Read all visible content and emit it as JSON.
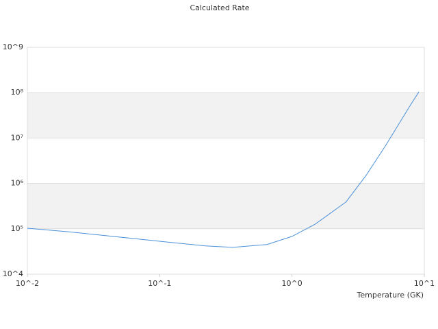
{
  "chart_data": {
    "type": "line",
    "title": "Calculated Rate",
    "x_label": "Temperature (GK)",
    "log_x": true,
    "log_y": true,
    "grid": true,
    "xlim": [
      0.01,
      10
    ],
    "ylim": [
      10000,
      1000000000
    ],
    "xticks": [
      {
        "value": 0.01,
        "label": "10^-2"
      },
      {
        "value": 0.1,
        "label": "10^-1"
      },
      {
        "value": 1,
        "label": "10^0"
      },
      {
        "value": 10,
        "label": "10^1"
      }
    ],
    "yticks": [
      {
        "value": 10000,
        "label": "10^4"
      },
      {
        "value": 100000,
        "label": "10⁵"
      },
      {
        "value": 1000000,
        "label": "10⁶"
      },
      {
        "value": 10000000,
        "label": "10⁷"
      },
      {
        "value": 100000000,
        "label": "10⁸"
      },
      {
        "value": 1000000000,
        "label": "10^9"
      }
    ],
    "x": [
      0.01,
      0.0204,
      0.0444,
      0.1,
      0.222,
      0.357,
      0.648,
      1.0,
      1.5,
      2.56,
      3.63,
      5.08,
      7.88,
      9.1
    ],
    "series": [
      {
        "color": "#4a90d9",
        "values": [
          103000,
          86000,
          68000,
          53000,
          42000,
          39000,
          45000,
          68000,
          127000,
          390000,
          1500000,
          6700000,
          54000000,
          104000000
        ]
      }
    ]
  }
}
